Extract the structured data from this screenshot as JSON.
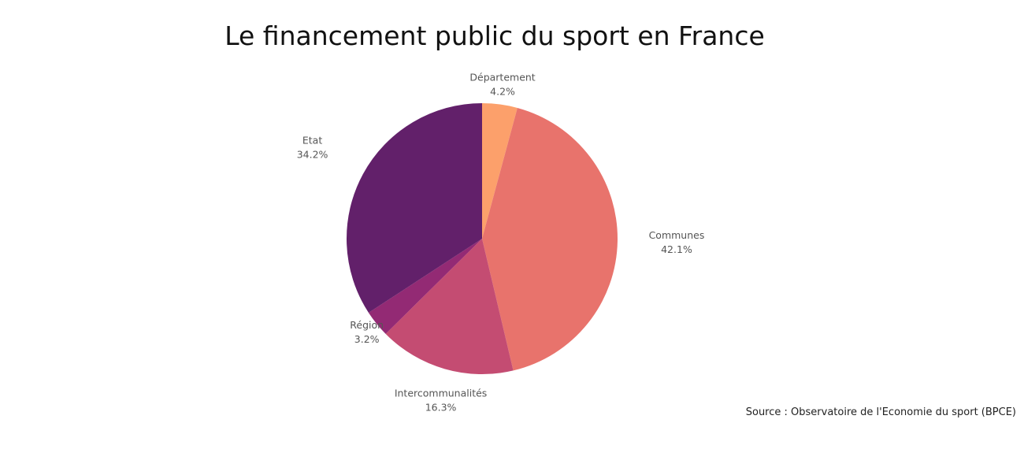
{
  "chart_data": {
    "type": "pie",
    "title": "Le financement public du sport en France",
    "slices": [
      {
        "label": "Département",
        "value": 4.2,
        "value_label": "4.2%",
        "color": "#FCA06B"
      },
      {
        "label": "Communes",
        "value": 42.1,
        "value_label": "42.1%",
        "color": "#E8736C"
      },
      {
        "label": "Intercommunalités",
        "value": 16.3,
        "value_label": "16.3%",
        "color": "#C44C72"
      },
      {
        "label": "Région",
        "value": 3.2,
        "value_label": "3.2%",
        "color": "#932A74"
      },
      {
        "label": "Etat",
        "value": 34.2,
        "value_label": "34.2%",
        "color": "#62206A"
      }
    ],
    "start_angle": "12 o'clock",
    "direction": "clockwise",
    "legend": "none"
  },
  "source": "Source : Observatoire de l'Economie du sport (BPCE)"
}
